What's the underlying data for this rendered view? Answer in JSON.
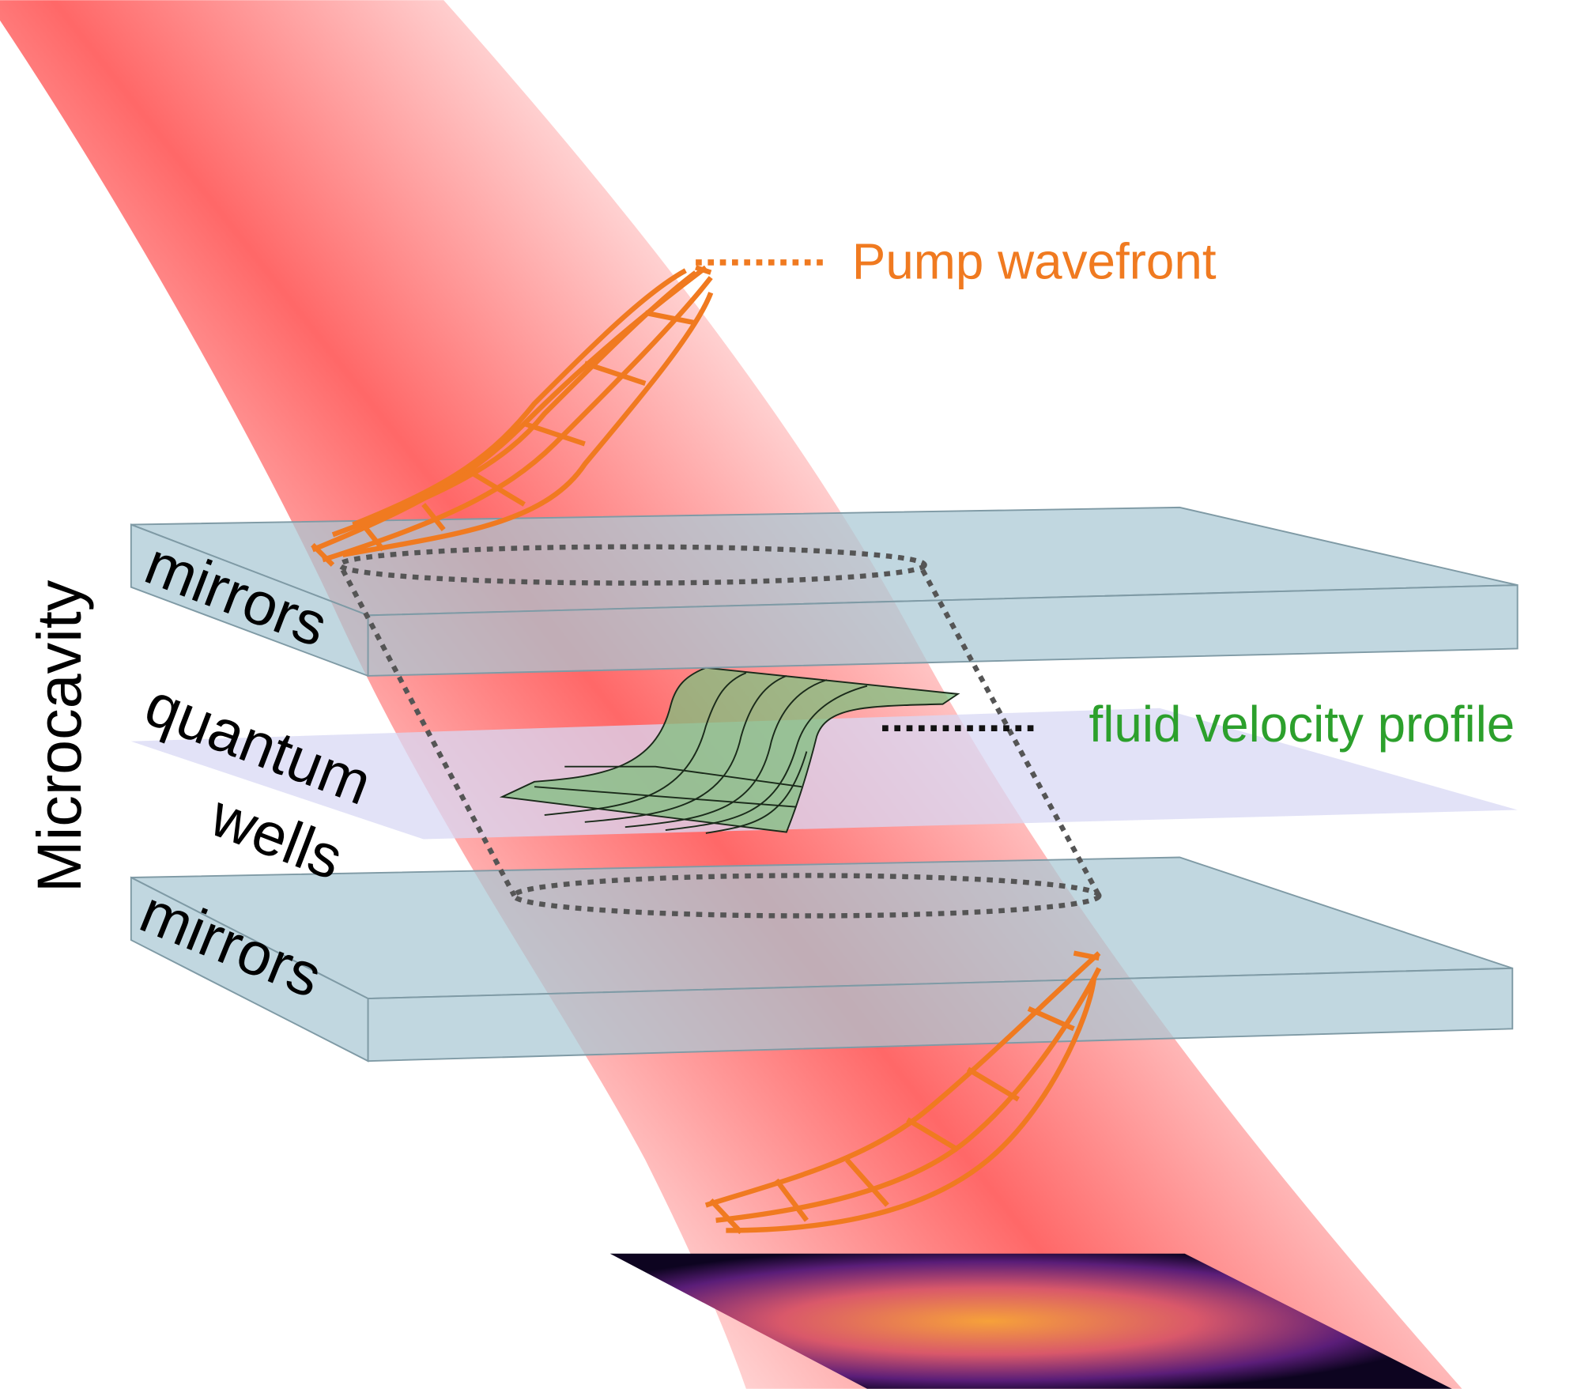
{
  "labels": {
    "pump_wavefront": "Pump wavefront",
    "fluid_velocity_profile": "fluid velocity profile",
    "microcavity": "Microcavity",
    "mirrors_top": "mirrors",
    "quantum": "quantum",
    "wells": "wells",
    "mirrors_bottom": "mirrors"
  }
}
